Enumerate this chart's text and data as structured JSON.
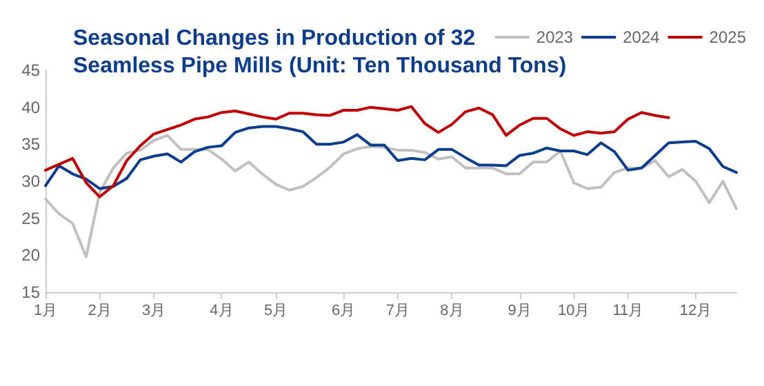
{
  "chart_data": {
    "type": "line",
    "title": "Seasonal Changes in Production of 32\nSeamless Pipe Mills (Unit: Ten Thousand Tons)",
    "categories": [
      "1月",
      null,
      null,
      null,
      "2月",
      null,
      null,
      null,
      "3月",
      null,
      null,
      null,
      null,
      "4月",
      null,
      null,
      null,
      "5月",
      null,
      null,
      null,
      null,
      "6月",
      null,
      null,
      null,
      "7月",
      null,
      null,
      null,
      "8月",
      null,
      null,
      null,
      null,
      "9月",
      null,
      null,
      null,
      "10月",
      null,
      null,
      null,
      "11月",
      null,
      null,
      null,
      null,
      "12月",
      null,
      null,
      null
    ],
    "series": [
      {
        "name": "2023",
        "color": "#c0c0c0",
        "values": [
          27.6,
          25.6,
          24.3,
          19.8,
          28.5,
          31.8,
          33.8,
          34.2,
          35.5,
          36.2,
          34.3,
          34.3,
          34.3,
          33.0,
          31.4,
          32.6,
          31.0,
          29.6,
          28.8,
          29.3,
          30.5,
          31.9,
          33.7,
          34.4,
          34.7,
          34.6,
          34.2,
          34.2,
          33.9,
          33.0,
          33.3,
          31.8,
          31.8,
          31.8,
          31.0,
          31.0,
          32.6,
          32.6,
          34.1,
          29.8,
          29.0,
          29.2,
          31.2,
          31.8,
          31.8,
          32.8,
          30.6,
          31.6,
          30.0,
          27.1,
          30.0,
          26.3
        ]
      },
      {
        "name": "2024",
        "color": "#0a3d8f",
        "values": [
          29.4,
          32.1,
          31.0,
          30.3,
          29.0,
          29.3,
          30.4,
          32.9,
          33.4,
          33.7,
          32.6,
          34.0,
          34.6,
          34.8,
          36.6,
          37.2,
          37.4,
          37.4,
          37.1,
          36.7,
          35.0,
          35.0,
          35.3,
          36.3,
          34.9,
          34.9,
          32.8,
          33.1,
          32.9,
          34.3,
          34.3,
          33.2,
          32.2,
          32.2,
          32.1,
          33.5,
          33.8,
          34.5,
          34.1,
          34.1,
          33.6,
          35.2,
          34.0,
          31.5,
          31.8,
          33.5,
          35.2,
          35.3,
          35.4,
          34.4,
          32.0,
          31.2
        ]
      },
      {
        "name": "2025",
        "color": "#c00000",
        "values": [
          31.5,
          32.3,
          33.1,
          29.8,
          27.9,
          29.4,
          32.8,
          34.8,
          36.4,
          37.0,
          37.6,
          38.4,
          38.7,
          39.3,
          39.5,
          39.1,
          38.7,
          38.4,
          39.2,
          39.2,
          39.0,
          38.9,
          39.6,
          39.6,
          40.0,
          39.8,
          39.6,
          40.1,
          37.8,
          36.6,
          37.7,
          39.4,
          39.9,
          39.0,
          36.2,
          37.6,
          38.5,
          38.5,
          37.1,
          36.2,
          36.7,
          36.5,
          36.7,
          38.4,
          39.3,
          38.9,
          38.6,
          null,
          null,
          null,
          null,
          null
        ]
      }
    ],
    "ylim": [
      15,
      45
    ],
    "yticks": [
      15,
      20,
      25,
      30,
      35,
      40,
      45
    ],
    "legend": "top right",
    "marker": "none",
    "line_style": "solid",
    "grid": false
  }
}
